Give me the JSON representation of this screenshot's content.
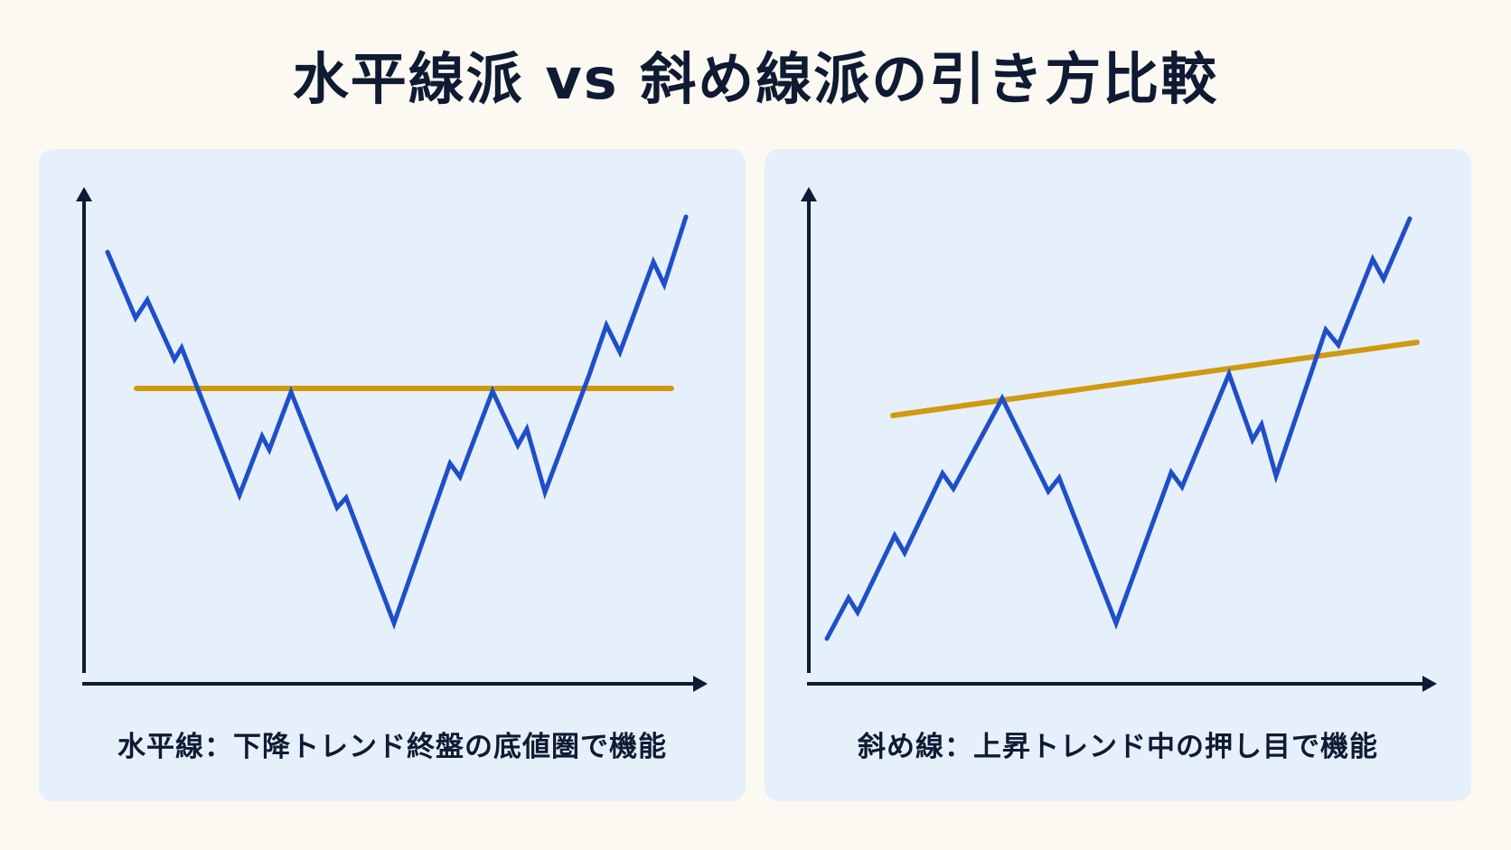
{
  "title": "水平線派 vs 斜め線派の引き方比較",
  "colors": {
    "background": "#fcf8f2",
    "panel": "#e6f0fb",
    "price_line": "#1f4fc8",
    "trend_line": "#cf9a12",
    "axis": "#0f1a33"
  },
  "panels": [
    {
      "caption": "水平線：下降トレンド終盤の底値圏で機能",
      "line_kind": "horizontal"
    },
    {
      "caption": "斜め線：上昇トレンド中の押し目で機能",
      "line_kind": "diagonal"
    }
  ]
}
